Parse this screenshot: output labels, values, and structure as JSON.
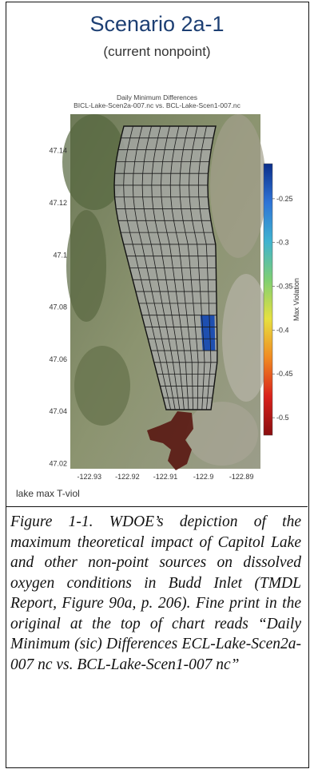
{
  "header": {
    "title": "Scenario 2a-1",
    "subtitle": "(current nonpoint)"
  },
  "chart": {
    "title_line1": "Daily Minimum Differences",
    "title_line2": "BICL-Lake-Scen2a-007.nc vs. BCL-Lake-Scen1-007.nc",
    "footer_label": "lake max T-viol"
  },
  "chart_data": {
    "type": "heatmap",
    "x_ticks": [
      "-122.93",
      "-122.92",
      "-122.91",
      "-122.9",
      "-122.89"
    ],
    "y_ticks": [
      "47.14",
      "47.12",
      "47.1",
      "47.08",
      "47.06",
      "47.04",
      "47.02"
    ],
    "xlim": [
      -122.935,
      -122.885
    ],
    "ylim": [
      47.018,
      47.154
    ],
    "colorbar": {
      "label": "Max Violation",
      "ticks": [
        "-0.25",
        "-0.3",
        "-0.35",
        "-0.4",
        "-0.45",
        "-0.5"
      ],
      "range": [
        -0.52,
        -0.21
      ],
      "colors": [
        "#0b2e8a",
        "#2e73d6",
        "#3fb3d0",
        "#7fcf72",
        "#e6e040",
        "#f08a22",
        "#d9221c",
        "#8a0e10"
      ]
    },
    "highlights": [
      {
        "region": "east shoreline cells near 47.06",
        "value": -0.25,
        "color": "#1e4fb0"
      },
      {
        "region": "Capitol Lake basin",
        "value": -0.5,
        "color": "#5a1a14"
      }
    ]
  },
  "caption": "Figure 1-1. WDOE’s depiction of the maximum theoretical impact of Capitol Lake and other non-point sources on dissolved oxygen conditions in Budd Inlet (TMDL Report, Figure 90a, p. 206). Fine print in the original at the top of chart reads “Daily Minimum (sic) Differences ECL-Lake-Scen2a-007 nc vs. BCL-Lake-Scen1-007 nc”"
}
